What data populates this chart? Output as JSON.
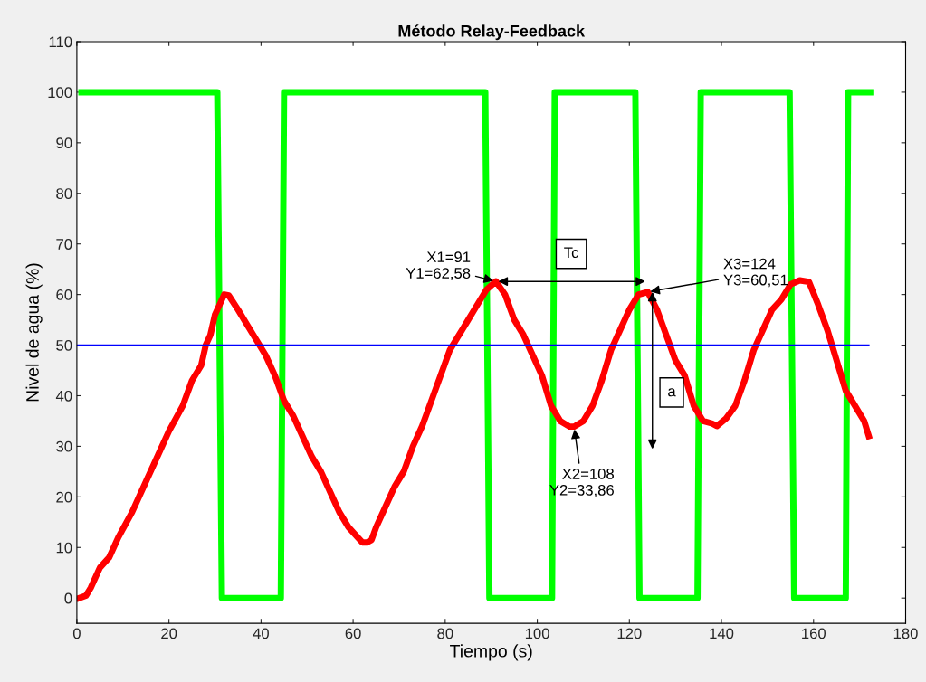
{
  "chart_data": {
    "type": "line",
    "title": "Método Relay-Feedback",
    "xlabel": "Tiempo (s)",
    "ylabel": "Nivel de agua (%)",
    "xlim": [
      0,
      180
    ],
    "xticks": [
      0,
      20,
      40,
      60,
      80,
      100,
      120,
      140,
      160,
      180
    ],
    "ylim": [
      -5,
      110
    ],
    "yticks": [
      0,
      10,
      20,
      30,
      40,
      50,
      60,
      70,
      80,
      90,
      100,
      110
    ],
    "grid": false,
    "legend": false,
    "marker": "none",
    "line_style": "solid",
    "series": [
      {
        "color": "#00ff00",
        "x": [
          1,
          30.5,
          31.5,
          44.3,
          45,
          88.7,
          89.6,
          103.2,
          103.8,
          121.3,
          122.2,
          134.8,
          135.5,
          154.8,
          155.8,
          167,
          167.5,
          172.5
        ],
        "values": [
          100,
          100,
          0,
          0,
          100,
          100,
          0,
          0,
          100,
          100,
          0,
          0,
          100,
          100,
          0,
          0,
          100,
          100
        ]
      },
      {
        "color": "#ff0000",
        "x": [
          0.5,
          2,
          3,
          5,
          7,
          9,
          12,
          15,
          18,
          20,
          23,
          25,
          27,
          28,
          29,
          30,
          31,
          32,
          33,
          35,
          37,
          39,
          41,
          43,
          45,
          47,
          49,
          51,
          53,
          55,
          57,
          59,
          61,
          62,
          63,
          64,
          65,
          67,
          69,
          71,
          73,
          75,
          77,
          79,
          81,
          83,
          85,
          87,
          89,
          91,
          93,
          95,
          97,
          99,
          101,
          103,
          105,
          107,
          108,
          110,
          112,
          114,
          116,
          118,
          120,
          122,
          124,
          126,
          128,
          130,
          132,
          134,
          136,
          138,
          139,
          141,
          143,
          145,
          147,
          149,
          151,
          153,
          155,
          157,
          159,
          161,
          163,
          165,
          167,
          169,
          171,
          172
        ],
        "values": [
          0,
          0.5,
          2,
          6,
          8,
          12,
          17,
          23,
          29,
          33,
          38,
          43,
          46,
          50,
          52,
          56,
          58,
          60,
          59.8,
          57,
          54,
          51,
          48,
          44,
          39,
          36,
          32,
          28,
          25,
          21,
          17,
          14,
          12,
          11,
          11,
          11.5,
          14,
          18,
          22,
          25,
          30,
          34,
          39,
          44,
          49,
          52,
          55,
          58,
          61,
          62.6,
          60,
          55,
          52,
          48,
          44,
          38,
          35,
          33.9,
          33.9,
          35,
          38,
          43,
          49,
          53,
          57,
          60,
          60.5,
          57,
          52,
          47,
          44,
          38,
          35,
          34.5,
          34,
          35.5,
          38,
          43,
          49,
          53,
          57,
          59,
          62,
          62.8,
          62.5,
          58,
          53,
          47,
          41,
          38,
          35,
          32
        ]
      },
      {
        "color": "#0000ff",
        "x": [
          0,
          172
        ],
        "values": [
          50,
          50
        ]
      }
    ],
    "annotations": [
      {
        "text": "X1=91\nY1=62,58",
        "x": 91,
        "y": 62.58
      },
      {
        "text": "X2=108\nY2=33,86",
        "x": 108,
        "y": 33.86
      },
      {
        "text": "X3=124\nY3=60,51",
        "x": 124,
        "y": 60.51
      },
      "Tc",
      "a"
    ]
  }
}
